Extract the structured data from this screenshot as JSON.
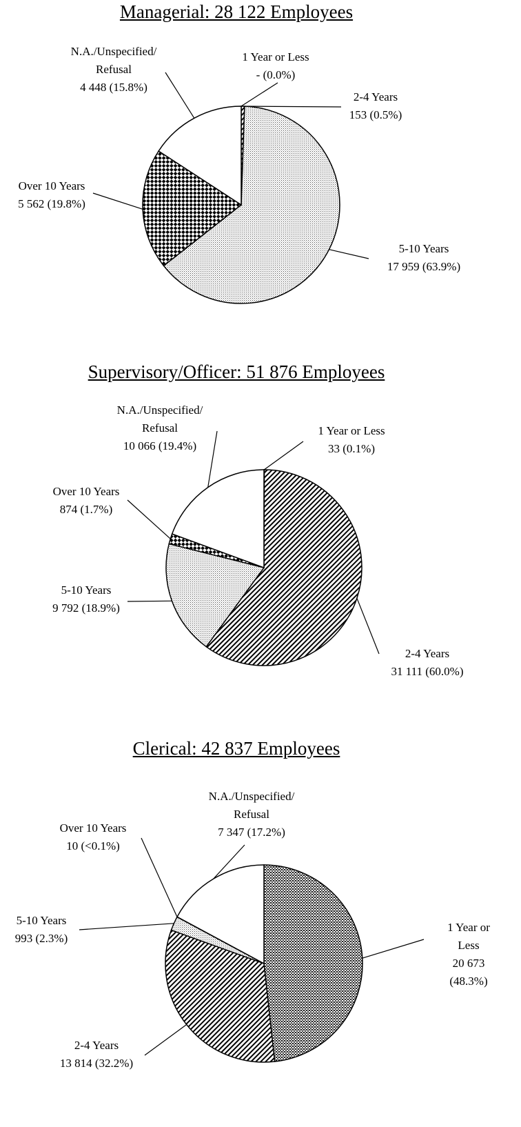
{
  "chart_data": [
    {
      "type": "pie",
      "title": "Managerial:  28 122 Employees",
      "categories": [
        "1 Year or Less",
        "2-4 Years",
        "5-10 Years",
        "Over 10 Years",
        "N.A./Unspecified/\nRefusal"
      ],
      "values": [
        0,
        153,
        17959,
        5562,
        4448
      ],
      "value_labels": [
        "- (0.0%)",
        "153 (0.5%)",
        "17 959 (63.9%)",
        "5 562 (19.8%)",
        "4 448 (15.8%)"
      ]
    },
    {
      "type": "pie",
      "title": "Supervisory/Officer:  51 876 Employees",
      "categories": [
        "1 Year or Less",
        "2-4 Years",
        "5-10 Years",
        "Over 10 Years",
        "N.A./Unspecified/\nRefusal"
      ],
      "values": [
        33,
        31111,
        9792,
        874,
        10066
      ],
      "value_labels": [
        "33 (0.1%)",
        "31 111 (60.0%)",
        "9 792 (18.9%)",
        "874 (1.7%)",
        "10 066 (19.4%)"
      ]
    },
    {
      "type": "pie",
      "title": "Clerical:  42 837 Employees",
      "categories": [
        "1 Year or Less",
        "2-4 Years",
        "5-10 Years",
        "Over 10 Years",
        "N.A./Unspecified/\nRefusal"
      ],
      "values": [
        20673,
        13814,
        993,
        10,
        7347
      ],
      "value_labels": [
        "20 673 (48.3%)",
        "13 814 (32.2%)",
        "993 (2.3%)",
        "10 (<0.1%)",
        "7 347 (17.2%)"
      ]
    }
  ]
}
